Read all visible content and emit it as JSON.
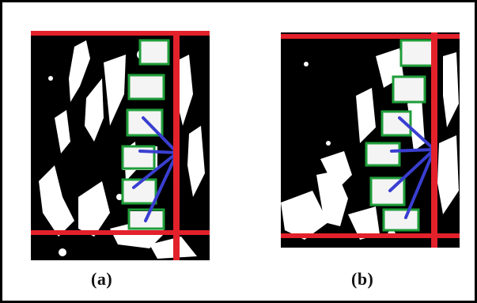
{
  "figure": {
    "panels": [
      {
        "id": "a",
        "caption": "(a)"
      },
      {
        "id": "b",
        "caption": "(b)"
      }
    ],
    "colors": {
      "background": "#000000",
      "bone": "#ffffff",
      "reference_line": "#e3212b",
      "vertebra_box": "#1f9e3a",
      "angle_vector": "#3a3fd1"
    }
  }
}
